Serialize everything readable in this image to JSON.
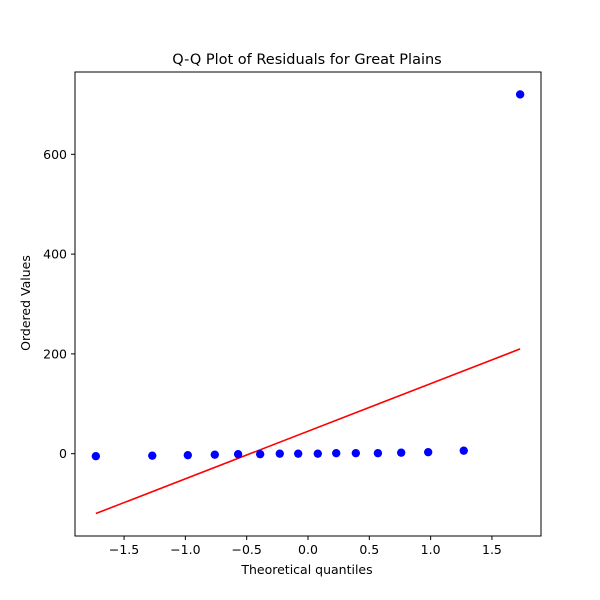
{
  "chart_data": {
    "type": "scatter",
    "title": "Q-Q Plot of Residuals for Great Plains",
    "xlabel": "Theoretical quantiles",
    "ylabel": "Ordered Values",
    "xlim": [
      -1.9,
      1.9
    ],
    "ylim": [
      -165,
      765
    ],
    "xticks": [
      -1.5,
      -1.0,
      -0.5,
      0.0,
      0.5,
      1.0,
      1.5
    ],
    "xtick_labels": [
      "−1.5",
      "−1.0",
      "−0.5",
      "0.0",
      "0.5",
      "1.0",
      "1.5"
    ],
    "yticks": [
      0,
      200,
      400,
      600
    ],
    "ytick_labels": [
      "0",
      "200",
      "400",
      "600"
    ],
    "grid": false,
    "points": {
      "color": "#0000ff",
      "x": [
        -1.73,
        -1.27,
        -0.98,
        -0.76,
        -0.57,
        -0.39,
        -0.23,
        -0.08,
        0.08,
        0.23,
        0.39,
        0.57,
        0.76,
        0.98,
        1.27,
        1.73
      ],
      "y": [
        -5,
        -4,
        -3,
        -2,
        -1,
        -1,
        0,
        0,
        0,
        1,
        1,
        1,
        2,
        3,
        6,
        720
      ]
    },
    "fit_line": {
      "color": "#ff0000",
      "x": [
        -1.73,
        1.73
      ],
      "y": [
        -120,
        210
      ]
    }
  }
}
